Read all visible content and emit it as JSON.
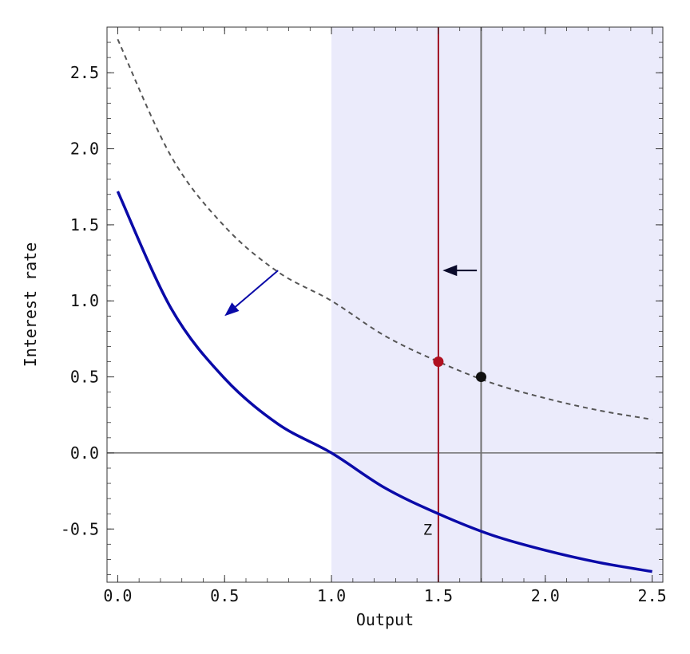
{
  "chart_data": {
    "type": "line",
    "xlabel": "Output",
    "ylabel": "Interest rate",
    "xlim": [
      -0.05,
      2.55
    ],
    "ylim": [
      -0.85,
      2.8
    ],
    "x_ticks": [
      "0.0",
      "0.5",
      "1.0",
      "1.5",
      "2.0",
      "2.5"
    ],
    "x_tick_values": [
      0.0,
      0.5,
      1.0,
      1.5,
      2.0,
      2.5
    ],
    "y_ticks": [
      "-0.5",
      "0.0",
      "0.5",
      "1.0",
      "1.5",
      "2.0",
      "2.5"
    ],
    "y_tick_values": [
      -0.5,
      0.0,
      0.5,
      1.0,
      1.5,
      2.0,
      2.5
    ],
    "shaded_region": {
      "x_from": 1.0,
      "x_to": 2.55,
      "color": "#ebebfb"
    },
    "series": [
      {
        "style": "dashed",
        "color": "#555555",
        "x": [
          0.0,
          0.25,
          0.5,
          0.75,
          1.0,
          1.25,
          1.5,
          1.75,
          2.0,
          2.25,
          2.5
        ],
        "y": [
          2.72,
          1.95,
          1.49,
          1.19,
          1.0,
          0.77,
          0.6,
          0.46,
          0.36,
          0.28,
          0.22
        ]
      },
      {
        "style": "solid",
        "color": "#0a0aa8",
        "x": [
          0.0,
          0.25,
          0.5,
          0.75,
          1.0,
          1.25,
          1.5,
          1.75,
          2.0,
          2.25,
          2.5
        ],
        "y": [
          1.72,
          0.95,
          0.49,
          0.19,
          0.0,
          -0.23,
          -0.4,
          -0.54,
          -0.64,
          -0.72,
          -0.78
        ]
      }
    ],
    "reference_lines": [
      {
        "orientation": "horizontal",
        "value": 0.0,
        "color": "#707070"
      },
      {
        "orientation": "vertical",
        "value": 1.5,
        "color": "#a01020"
      },
      {
        "orientation": "vertical",
        "value": 1.7,
        "color": "#707070"
      }
    ],
    "points": [
      {
        "x": 1.5,
        "y": 0.6,
        "color": "#b01020"
      },
      {
        "x": 1.7,
        "y": 0.5,
        "color": "#111111"
      }
    ],
    "arrows": [
      {
        "from": [
          0.75,
          1.2
        ],
        "to": [
          0.5,
          0.9
        ],
        "color": "#0a0aa8"
      },
      {
        "from": [
          1.68,
          1.2
        ],
        "to": [
          1.52,
          1.2
        ],
        "color": "#0a0a2a"
      }
    ],
    "annotations": [
      {
        "text": "Z",
        "x": 1.45,
        "y": -0.5
      }
    ]
  }
}
